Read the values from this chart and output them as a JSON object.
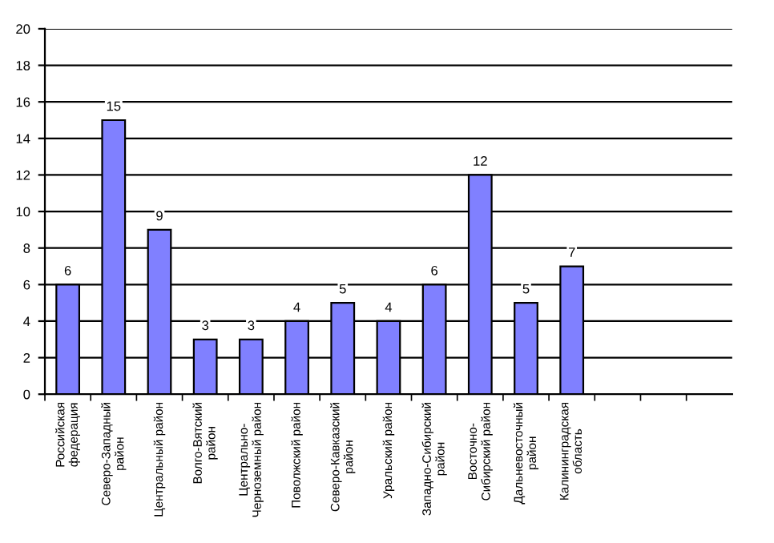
{
  "chart_data": {
    "type": "bar",
    "categories": [
      "Российская\nфедерация",
      "Северо-Западный\nрайон",
      "Центральный район",
      "Волго-Вятский\nрайон",
      "Центрально-\nЧерноземный район",
      "Поволжский район",
      "Северо-Кавказский\nрайон",
      "Уральский район",
      "Западно-Сибирский\nрайон",
      "Восточно-\nСибирский район",
      "Дальневосточный\nрайон",
      "Калининградская\nобласть",
      null,
      null,
      null
    ],
    "values": [
      6,
      15,
      9,
      3,
      3,
      4,
      5,
      4,
      6,
      12,
      5,
      7,
      null,
      null,
      null
    ],
    "color": "#8080ff",
    "ylim": [
      0,
      20
    ],
    "yticks": [
      0,
      2,
      4,
      6,
      8,
      10,
      12,
      14,
      16,
      18,
      20
    ],
    "grid": "y",
    "data_labels": true
  }
}
